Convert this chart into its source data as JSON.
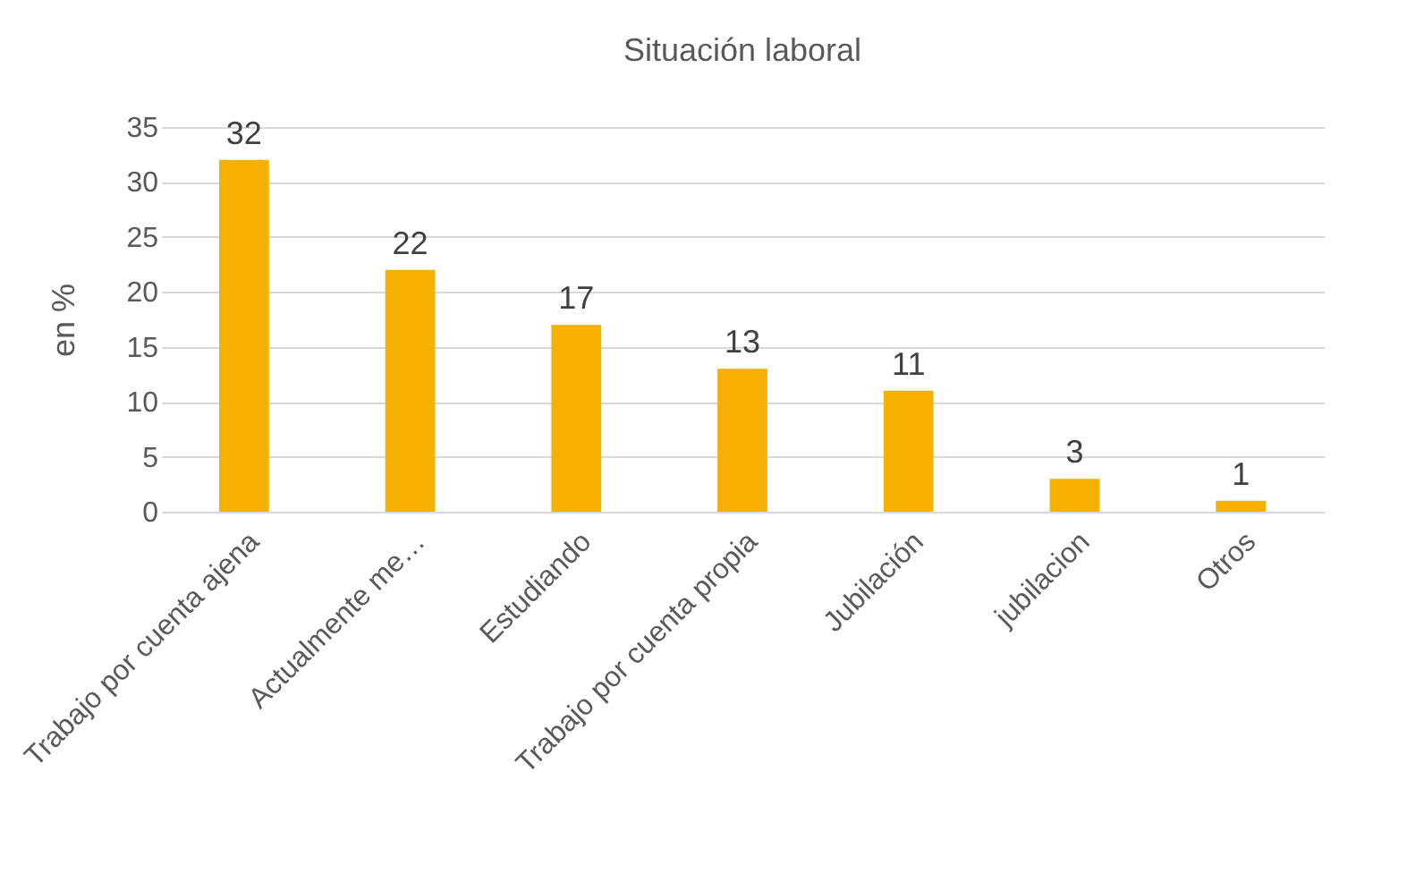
{
  "chart_data": {
    "type": "bar",
    "title": "Situación laboral",
    "ylabel": "en %",
    "categories": [
      "Trabajo por cuenta ajena",
      "Actualmente me…",
      "Estudiando",
      "Trabajo por cuenta propia",
      "Jubilación",
      "jubilacion",
      "Otros"
    ],
    "values": [
      32,
      22,
      17,
      13,
      11,
      3,
      1
    ],
    "color": "#f5b000",
    "ylim": [
      0,
      35
    ],
    "yticks": [
      0,
      5,
      10,
      15,
      20,
      25,
      30,
      35
    ],
    "grid": "y",
    "data_labels": true
  }
}
